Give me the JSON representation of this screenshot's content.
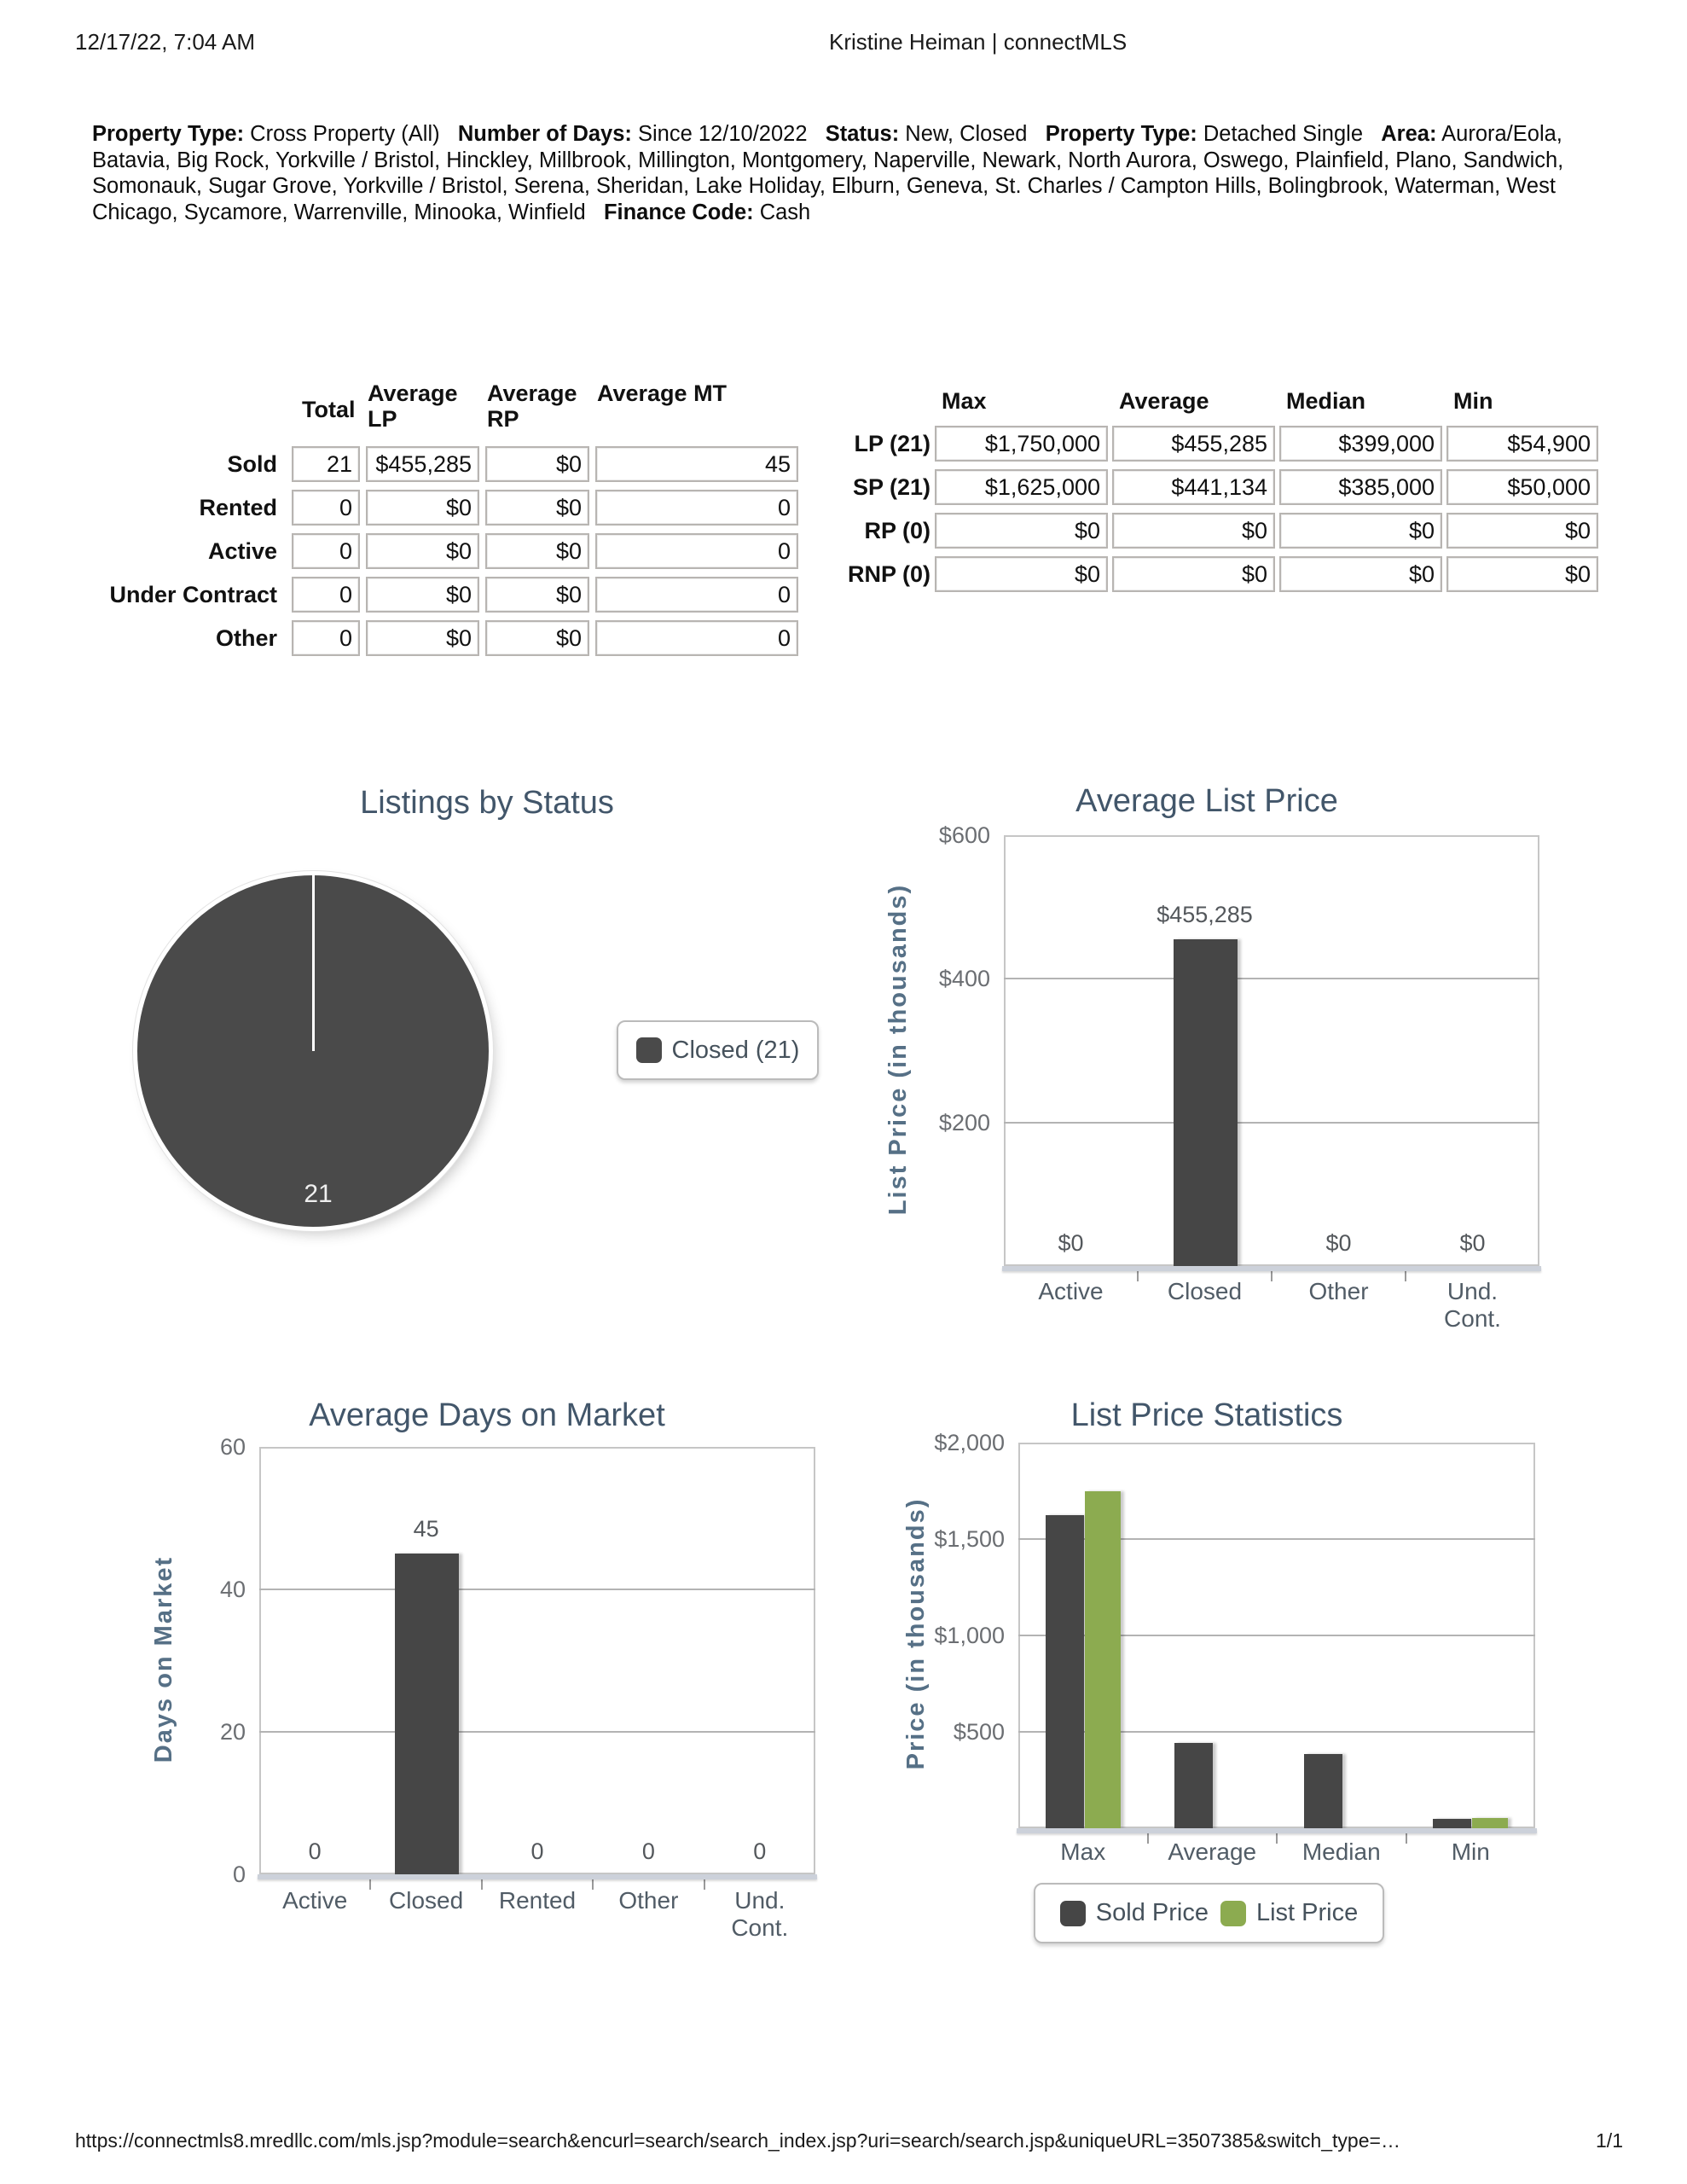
{
  "header": {
    "date": "12/17/22, 7:04 AM",
    "title": "Kristine Heiman | connectMLS"
  },
  "criteria": [
    {
      "label": "Property Type:",
      "value": "Cross Property (All)"
    },
    {
      "label": "Number of Days:",
      "value": "Since 12/10/2022"
    },
    {
      "label": "Status:",
      "value": "New, Closed"
    },
    {
      "label": "Property Type:",
      "value": "Detached Single"
    },
    {
      "label": "Area:",
      "value": "Aurora/Eola, Batavia, Big Rock, Yorkville / Bristol, Hinckley, Millbrook, Millington, Montgomery, Naperville, Newark, North Aurora, Oswego, Plainfield, Plano, Sandwich, Somonauk, Sugar Grove, Yorkville / Bristol, Serena, Sheridan, Lake Holiday, Elburn, Geneva, St. Charles / Campton Hills, Bolingbrook, Waterman, West Chicago, Sycamore, Warrenville, Minooka, Winfield"
    },
    {
      "label": "Finance Code:",
      "value": "Cash"
    }
  ],
  "summary_table": {
    "headers": [
      {
        "lines": [
          "Total"
        ]
      },
      {
        "lines": [
          "Average",
          "LP"
        ]
      },
      {
        "lines": [
          "Average",
          "RP"
        ]
      },
      {
        "lines": [
          "Average MT"
        ]
      }
    ],
    "rows": [
      {
        "label": "Sold",
        "values": [
          "21",
          "$455,285",
          "$0",
          "45"
        ]
      },
      {
        "label": "Rented",
        "values": [
          "0",
          "$0",
          "$0",
          "0"
        ]
      },
      {
        "label": "Active",
        "values": [
          "0",
          "$0",
          "$0",
          "0"
        ]
      },
      {
        "label": "Under Contract",
        "values": [
          "0",
          "$0",
          "$0",
          "0"
        ]
      },
      {
        "label": "Other",
        "values": [
          "0",
          "$0",
          "$0",
          "0"
        ]
      }
    ]
  },
  "stats_table": {
    "headers": [
      "Max",
      "Average",
      "Median",
      "Min"
    ],
    "rows": [
      {
        "label": "LP (21)",
        "values": [
          "$1,750,000",
          "$455,285",
          "$399,000",
          "$54,900"
        ]
      },
      {
        "label": "SP (21)",
        "values": [
          "$1,625,000",
          "$441,134",
          "$385,000",
          "$50,000"
        ]
      },
      {
        "label": "RP (0)",
        "values": [
          "$0",
          "$0",
          "$0",
          "$0"
        ]
      },
      {
        "label": "RNP (0)",
        "values": [
          "$0",
          "$0",
          "$0",
          "$0"
        ]
      }
    ]
  },
  "chart_data": [
    {
      "id": "pie",
      "type": "pie",
      "title": "Listings by Status",
      "slices": [
        {
          "label": "Closed (21)",
          "value": 21,
          "data_label": "21",
          "color": "#4a4a4a"
        }
      ],
      "legend": [
        {
          "text": "Closed (21)",
          "color": "#4a4a4a"
        }
      ],
      "legend_position": "right"
    },
    {
      "id": "alp",
      "type": "bar",
      "title": "Average List Price",
      "ylabel": "List Price (in thousands)",
      "ylim": [
        0,
        600
      ],
      "grid": true,
      "yticks": [
        {
          "v": 600,
          "label": "$600"
        },
        {
          "v": 400,
          "label": "$400"
        },
        {
          "v": 200,
          "label": "$200"
        }
      ],
      "categories": [
        "Active",
        "Closed",
        "Other",
        "Und.\nCont."
      ],
      "values": [
        0,
        455.285,
        0,
        0
      ],
      "value_labels": [
        "$0",
        "$455,285",
        "$0",
        "$0"
      ],
      "bar_color": "#464646"
    },
    {
      "id": "adom",
      "type": "bar",
      "title": "Average Days on Market",
      "ylabel": "Days on Market",
      "ylim": [
        0,
        60
      ],
      "grid": true,
      "yticks": [
        {
          "v": 60,
          "label": "60"
        },
        {
          "v": 40,
          "label": "40"
        },
        {
          "v": 20,
          "label": "20"
        },
        {
          "v": 0,
          "label": "0"
        }
      ],
      "categories": [
        "Active",
        "Closed",
        "Rented",
        "Other",
        "Und.\nCont."
      ],
      "values": [
        0,
        45,
        0,
        0,
        0
      ],
      "value_labels": [
        "0",
        "45",
        "0",
        "0",
        "0"
      ],
      "bar_color": "#464646"
    },
    {
      "id": "lps",
      "type": "grouped_bar",
      "title": "List Price Statistics",
      "ylabel": "Price (in thousands)",
      "ylim": [
        0,
        2000
      ],
      "grid": true,
      "yticks": [
        {
          "v": 2000,
          "label": "$2,000"
        },
        {
          "v": 1500,
          "label": "$1,500"
        },
        {
          "v": 1000,
          "label": "$1,000"
        },
        {
          "v": 500,
          "label": "$500"
        }
      ],
      "categories": [
        "Max",
        "Average",
        "Median",
        "Min"
      ],
      "series": [
        {
          "name": "Sold Price",
          "color": "#464646",
          "values": [
            1625,
            441.134,
            385,
            50
          ]
        },
        {
          "name": "List Price",
          "color": "#8cab50",
          "values": [
            1750,
            null,
            null,
            54.9
          ]
        }
      ],
      "legend": [
        {
          "text": "Sold Price",
          "color": "#464646"
        },
        {
          "text": "List Price",
          "color": "#8cab50"
        }
      ],
      "legend_position": "bottom"
    }
  ],
  "colors": {
    "title": "#42566a",
    "axis_label": "#567086",
    "tick": "#6b6e72",
    "category": "#515c66",
    "data_label": "#54585c",
    "bar": "#464646",
    "green": "#8cab50",
    "pie": "#4a4a4a",
    "grid": "#b3b3b3",
    "plot_border": "#c6c6c6",
    "baseline": "#ccd1da",
    "legend_text": "#46525c",
    "legend_border": "#bbbbbb"
  },
  "footer": {
    "url": "https://connectmls8.mredllc.com/mls.jsp?module=search&encurl=search/search_index.jsp?uri=search/search.jsp&uniqueURL=3507385&switch_type=…",
    "page": "1/1"
  }
}
